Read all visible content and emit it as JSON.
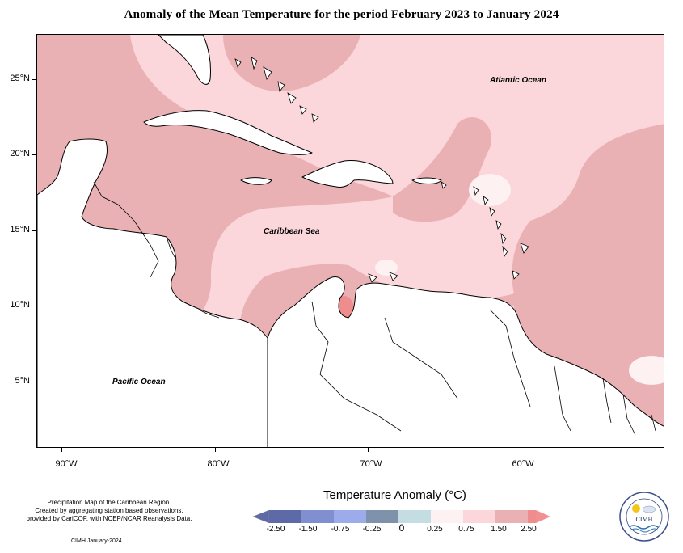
{
  "title": "Anomaly of the Mean Temperature for the period February 2023 to January 2024",
  "map": {
    "y_axis_labels": [
      "25°N",
      "20°N",
      "15°N",
      "10°N",
      "5°N"
    ],
    "x_axis_labels": [
      "90°W",
      "80°W",
      "70°W",
      "60°W"
    ],
    "ocean_labels": {
      "atlantic": "Atlantic Ocean",
      "caribbean": "Caribbean Sea",
      "pacific": "Pacific Ocean"
    },
    "extent": {
      "lon_min": -92.5,
      "lon_max": -51.5,
      "lat_min": 0.5,
      "lat_max": 28.0
    }
  },
  "legend": {
    "title": "Temperature Anomaly (°C)",
    "tick_labels": [
      "-2.50",
      "-1.50",
      "-0.75",
      "-0.25",
      "0",
      "0.25",
      "0.75",
      "1.50",
      "2.50"
    ],
    "colors": [
      "#5e6aa7",
      "#7f8fd0",
      "#9cacea",
      "#7e93ab",
      "#c4dde3",
      "#fdf1f2",
      "#fbd6da",
      "#eab1b5",
      "#ee8c8e",
      "#f28f91"
    ],
    "dominant_anomaly_ranges": [
      "0.25 to 0.75",
      "0.75 to 1.50",
      "1.50 to 2.50"
    ]
  },
  "credits": {
    "line1": "Precipitation Map of the Caribbean Region.",
    "line2": "Created by aggregating station based observations,",
    "line3": "provided by CariCOF, with NCEP/NCAR Reanalysis Data.",
    "footer": "CIMH January-2024",
    "logo_text": "CIMH"
  }
}
